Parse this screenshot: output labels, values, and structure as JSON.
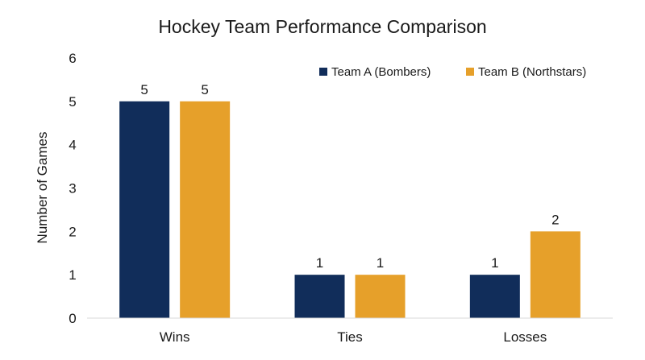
{
  "chart_data": {
    "type": "bar",
    "title": "Hockey Team Performance Comparison",
    "xlabel": "",
    "ylabel": "Number of Games",
    "categories": [
      "Wins",
      "Ties",
      "Losses"
    ],
    "ylim": [
      0,
      6
    ],
    "yticks": [
      0,
      1,
      2,
      3,
      4,
      5,
      6
    ],
    "grid": false,
    "legend_position": "top-right",
    "data_labels": true,
    "series": [
      {
        "name": "Team A (Bombers)",
        "values": [
          5,
          1,
          1
        ],
        "color": "#112d5a"
      },
      {
        "name": "Team B (Northstars)",
        "values": [
          5,
          1,
          2
        ],
        "color": "#e6a02a"
      }
    ]
  }
}
